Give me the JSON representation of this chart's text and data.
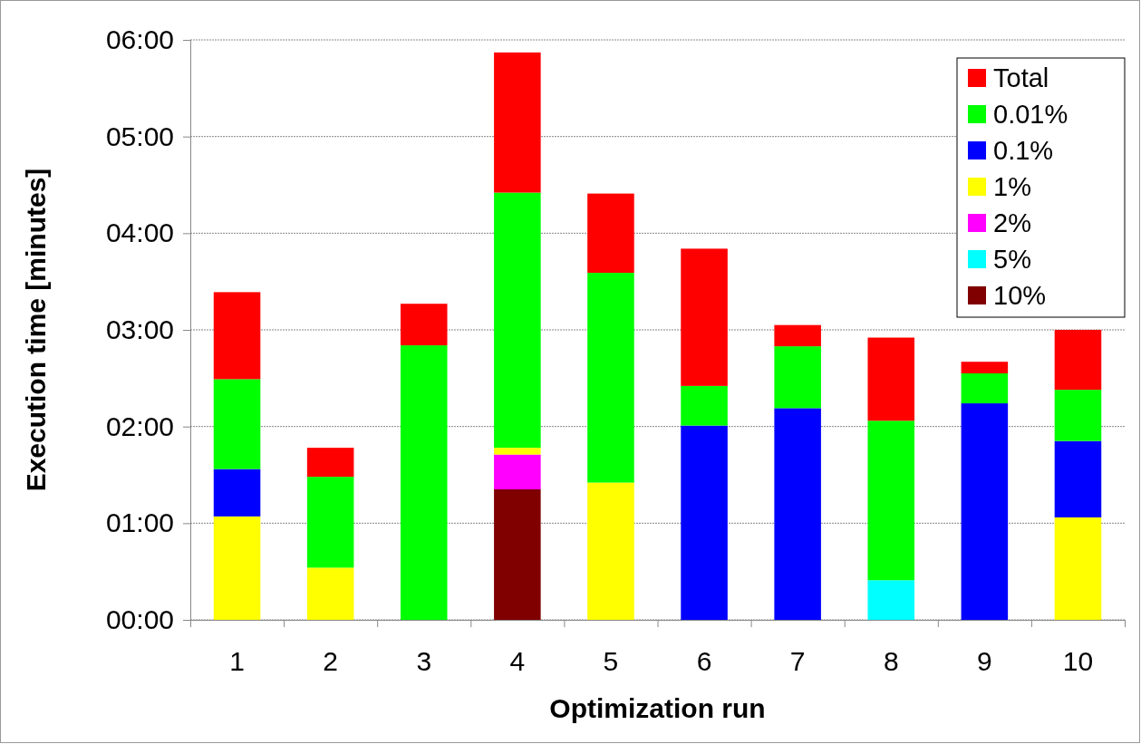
{
  "chart_data": {
    "type": "bar",
    "stacked": true,
    "xlabel": "Optimization run",
    "ylabel": "Execution time [minutes]",
    "categories": [
      "1",
      "2",
      "3",
      "4",
      "5",
      "6",
      "7",
      "8",
      "9",
      "10"
    ],
    "series": [
      {
        "name": "10%",
        "color": "#800000",
        "values": [
          0,
          0,
          0,
          1.35,
          0,
          0,
          0,
          0,
          0,
          0
        ]
      },
      {
        "name": "5%",
        "color": "#00ffff",
        "values": [
          0,
          0,
          0,
          0,
          0,
          0,
          0,
          0.41,
          0,
          0
        ]
      },
      {
        "name": "2%",
        "color": "#ff00ff",
        "values": [
          0,
          0,
          0,
          0.36,
          0,
          0,
          0,
          0,
          0,
          0
        ]
      },
      {
        "name": "1%",
        "color": "#ffff00",
        "values": [
          1.07,
          0.54,
          0,
          0.07,
          1.42,
          0,
          0,
          0,
          0,
          1.06
        ]
      },
      {
        "name": "0.1%",
        "color": "#0000ff",
        "values": [
          0.49,
          0,
          0,
          0,
          0,
          2.01,
          2.19,
          0,
          2.24,
          0.79
        ]
      },
      {
        "name": "0.01%",
        "color": "#00ff00",
        "values": [
          0.93,
          0.94,
          2.84,
          2.64,
          2.17,
          0.41,
          0.64,
          1.65,
          0.31,
          0.53
        ]
      },
      {
        "name": "Total",
        "color": "#ff0000",
        "values": [
          0.9,
          0.3,
          0.43,
          1.45,
          0.82,
          1.42,
          0.22,
          0.86,
          0.12,
          0.62
        ]
      }
    ],
    "ylim": [
      0,
      6
    ],
    "yticks": [
      {
        "value": 0,
        "label": "00:00"
      },
      {
        "value": 1,
        "label": "01:00"
      },
      {
        "value": 2,
        "label": "02:00"
      },
      {
        "value": 3,
        "label": "03:00"
      },
      {
        "value": 4,
        "label": "04:00"
      },
      {
        "value": 5,
        "label": "05:00"
      },
      {
        "value": 6,
        "label": "06:00"
      }
    ],
    "grid": "y",
    "legend": "top right"
  }
}
